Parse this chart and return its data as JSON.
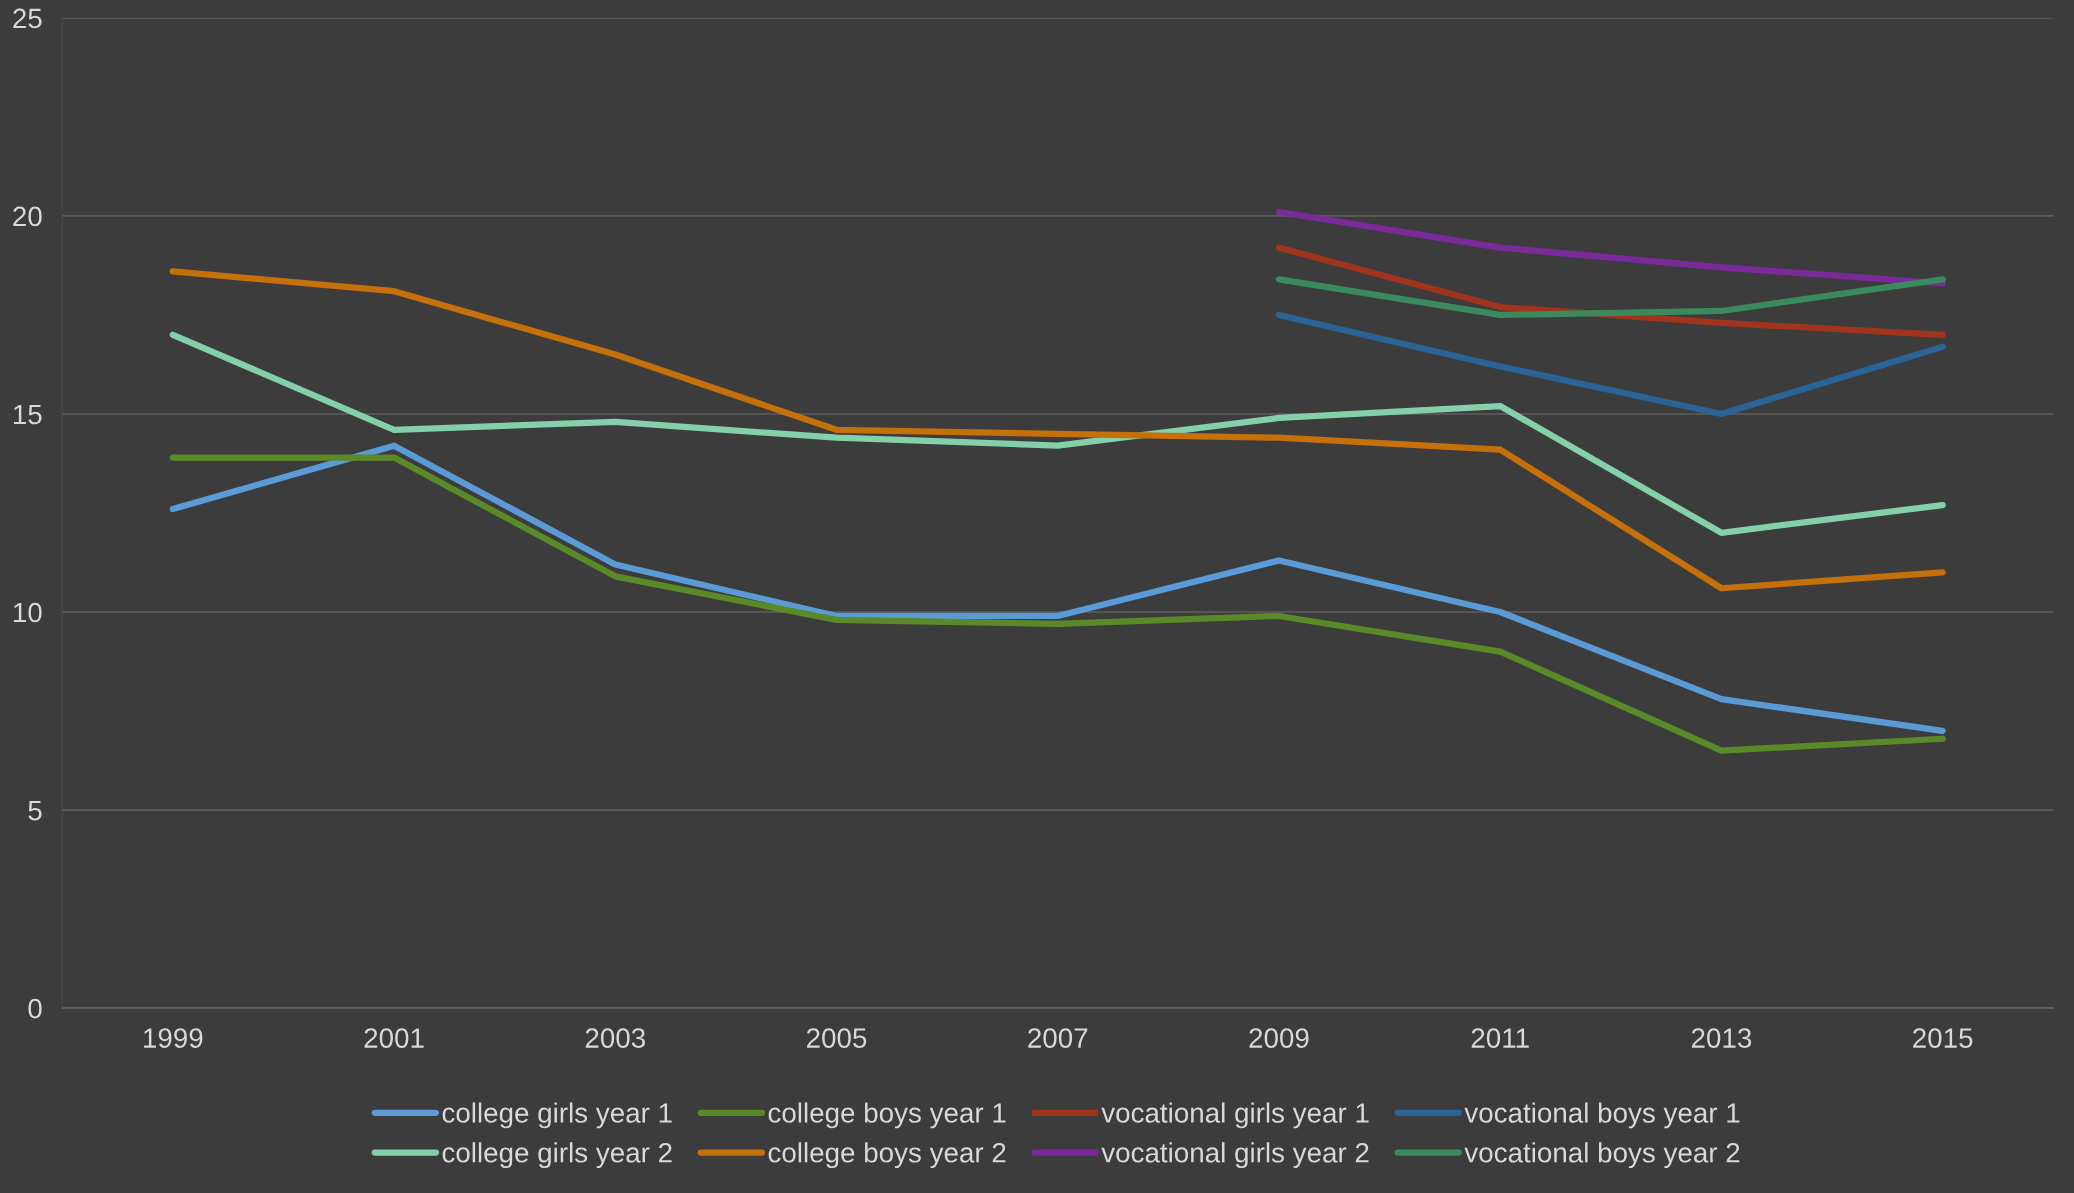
{
  "chart_data": {
    "type": "line",
    "categories": [
      "1999",
      "2001",
      "2003",
      "2005",
      "2007",
      "2009",
      "2011",
      "2013",
      "2015"
    ],
    "series": [
      {
        "name": "college girls year 1",
        "color": "#5b9bd5",
        "values": [
          12.6,
          14.2,
          11.2,
          9.9,
          9.9,
          11.3,
          10.0,
          7.8,
          7.0
        ]
      },
      {
        "name": "college girls year 2",
        "color": "#84d0a8",
        "values": [
          17.0,
          14.6,
          14.8,
          14.4,
          14.2,
          14.9,
          15.2,
          12.0,
          12.7
        ]
      },
      {
        "name": "college boys year 1",
        "color": "#5a8a28",
        "values": [
          13.9,
          13.9,
          10.9,
          9.8,
          9.7,
          9.9,
          9.0,
          6.5,
          6.8
        ]
      },
      {
        "name": "college boys year 2",
        "color": "#c5700b",
        "values": [
          18.6,
          18.1,
          16.5,
          14.6,
          14.5,
          14.4,
          14.1,
          10.6,
          11.0
        ]
      },
      {
        "name": "vocational girls year 1",
        "color": "#a0341c",
        "values": [
          null,
          null,
          null,
          null,
          null,
          19.2,
          17.7,
          17.3,
          17.0
        ]
      },
      {
        "name": "vocational girls year 2",
        "color": "#7b2a9c",
        "values": [
          null,
          null,
          null,
          null,
          null,
          20.1,
          19.2,
          18.7,
          18.3
        ]
      },
      {
        "name": "vocational boys year 1",
        "color": "#2a6496",
        "values": [
          null,
          null,
          null,
          null,
          null,
          17.5,
          16.2,
          15.0,
          16.7
        ]
      },
      {
        "name": "vocational boys year 2",
        "color": "#3a8a5e",
        "values": [
          null,
          null,
          null,
          null,
          null,
          18.4,
          17.5,
          17.6,
          18.4
        ]
      }
    ],
    "ylim": [
      0,
      25
    ],
    "yticks": [
      0,
      5,
      10,
      15,
      20,
      25
    ],
    "grid": "y",
    "legend": "bottom",
    "marker": "none",
    "line_style": "solid"
  }
}
